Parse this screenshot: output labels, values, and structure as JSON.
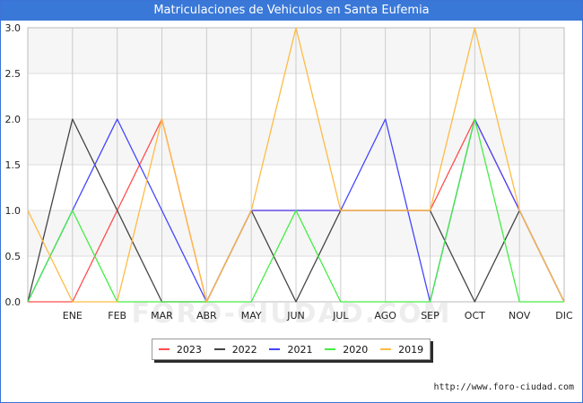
{
  "title": "Matriculaciones de Vehiculos en Santa Eufemia",
  "watermark": "FORO-CIUDAD.COM",
  "footer_url": "http://www.foro-ciudad.com",
  "chart_data": {
    "type": "line",
    "title": "Matriculaciones de Vehiculos en Santa Eufemia",
    "xlabel": "",
    "ylabel": "",
    "categories": [
      "",
      "ENE",
      "FEB",
      "MAR",
      "ABR",
      "MAY",
      "JUN",
      "JUL",
      "AGO",
      "SEP",
      "OCT",
      "NOV",
      "DIC"
    ],
    "ylim": [
      0,
      3
    ],
    "yticks": [
      "0.0",
      "0.5",
      "1.0",
      "1.5",
      "2.0",
      "2.5",
      "3.0"
    ],
    "grid": true,
    "legend_position": "bottom",
    "series": [
      {
        "name": "2023",
        "color": "#ff4d4d",
        "values": [
          0,
          0,
          1,
          2,
          0,
          1,
          1,
          1,
          1,
          1,
          2,
          1,
          0
        ]
      },
      {
        "name": "2022",
        "color": "#444444",
        "values": [
          0,
          2,
          1,
          0,
          0,
          1,
          0,
          1,
          1,
          1,
          0,
          1,
          0
        ]
      },
      {
        "name": "2021",
        "color": "#4444ff",
        "values": [
          0,
          1,
          2,
          1,
          0,
          1,
          1,
          1,
          2,
          0,
          2,
          1,
          0
        ]
      },
      {
        "name": "2020",
        "color": "#44ee44",
        "values": [
          0,
          1,
          0,
          0,
          0,
          0,
          1,
          0,
          0,
          0,
          2,
          0,
          0
        ]
      },
      {
        "name": "2019",
        "color": "#ffbb44",
        "values": [
          1,
          0,
          0,
          2,
          0,
          1,
          3,
          1,
          1,
          1,
          3,
          1,
          0
        ]
      }
    ]
  }
}
